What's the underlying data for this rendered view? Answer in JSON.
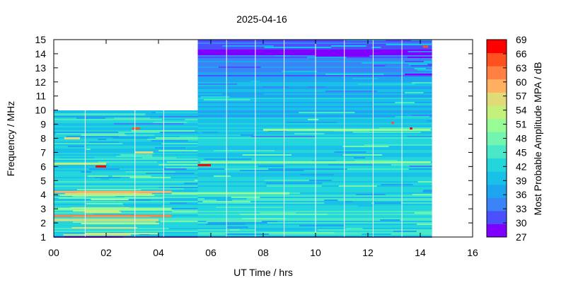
{
  "chart_data": {
    "type": "heatmap",
    "title": "2025-04-16",
    "xlabel": "UT Time / hrs",
    "ylabel": "Frequency / MHz",
    "colorbar_label": "Most Probable Amplitude MPA / dB",
    "xlim": [
      0,
      16
    ],
    "ylim": [
      1,
      15
    ],
    "x_ticks": [
      "00",
      "02",
      "04",
      "06",
      "08",
      "10",
      "12",
      "14",
      "16"
    ],
    "y_ticks": [
      "1",
      "2",
      "3",
      "4",
      "5",
      "6",
      "7",
      "8",
      "9",
      "10",
      "11",
      "12",
      "13",
      "14",
      "15"
    ],
    "colorbar_ticks": [
      "27",
      "30",
      "33",
      "36",
      "39",
      "42",
      "45",
      "48",
      "51",
      "54",
      "57",
      "60",
      "63",
      "66",
      "69"
    ],
    "colorbar_range": [
      27,
      69
    ],
    "colormap": [
      "#7f00ff",
      "#4b50ff",
      "#3b84f7",
      "#1ea5f0",
      "#19c0e8",
      "#22d6dc",
      "#48e8c8",
      "#72f5ae",
      "#98fc96",
      "#c4f07c",
      "#e0da78",
      "#ffb060",
      "#ff8040",
      "#ff5020",
      "#ff0000"
    ],
    "data_end_hours": 14.45,
    "coverage": [
      {
        "x_start": 0.0,
        "x_end": 5.5,
        "f_min": 1,
        "f_max": 10
      },
      {
        "x_start": 5.5,
        "x_end": 14.45,
        "f_min": 1,
        "f_max": 15
      }
    ],
    "gap_lines_hours": [
      1.2,
      3.1,
      4.2,
      6.6,
      7.7,
      8.8,
      10.0,
      11.1,
      12.2,
      13.3
    ],
    "bands": [
      {
        "f_min": 1.0,
        "f_max": 1.15,
        "mpa": 33
      },
      {
        "f_min": 1.15,
        "f_max": 2.0,
        "mpa": 42
      },
      {
        "f_min": 2.0,
        "f_max": 4.5,
        "mpa": 42
      },
      {
        "f_min": 4.5,
        "f_max": 9.5,
        "mpa": 41
      },
      {
        "f_min": 9.5,
        "f_max": 12.0,
        "mpa": 39
      },
      {
        "f_min": 12.0,
        "f_max": 13.5,
        "mpa": 35
      },
      {
        "f_min": 13.5,
        "f_max": 14.4,
        "mpa": 31
      },
      {
        "f_min": 14.4,
        "f_max": 15.0,
        "mpa": 33
      }
    ],
    "hot_lines": [
      {
        "f": 2.5,
        "x_start": 0.0,
        "x_end": 4.5,
        "mpa": 62
      },
      {
        "f": 2.2,
        "x_start": 0.0,
        "x_end": 4.0,
        "mpa": 55
      },
      {
        "f": 3.0,
        "x_start": 0.0,
        "x_end": 4.5,
        "mpa": 52
      },
      {
        "f": 4.2,
        "x_start": 0.0,
        "x_end": 4.5,
        "mpa": 58
      },
      {
        "f": 4.1,
        "x_start": 4.5,
        "x_end": 9.0,
        "mpa": 50
      },
      {
        "f": 6.2,
        "x_start": 0.0,
        "x_end": 2.0,
        "mpa": 53
      },
      {
        "f": 6.0,
        "x_start": 1.6,
        "x_end": 2.0,
        "mpa": 68
      },
      {
        "f": 6.1,
        "x_start": 5.5,
        "x_end": 6.0,
        "mpa": 68
      },
      {
        "f": 6.3,
        "x_start": 5.6,
        "x_end": 14.4,
        "mpa": 51
      },
      {
        "f": 8.6,
        "x_start": 8.0,
        "x_end": 14.4,
        "mpa": 52
      },
      {
        "f": 8.7,
        "x_start": 3.0,
        "x_end": 3.3,
        "mpa": 66
      },
      {
        "f": 9.7,
        "x_start": 0.0,
        "x_end": 3.5,
        "mpa": 45
      },
      {
        "f": 8.0,
        "x_start": 0.4,
        "x_end": 1.0,
        "mpa": 55
      },
      {
        "f": 7.0,
        "x_start": 3.1,
        "x_end": 3.8,
        "mpa": 55
      },
      {
        "f": 14.5,
        "x_start": 14.1,
        "x_end": 14.3,
        "mpa": 66
      },
      {
        "f": 9.1,
        "x_start": 12.9,
        "x_end": 13.0,
        "mpa": 66
      },
      {
        "f": 8.7,
        "x_start": 13.6,
        "x_end": 13.7,
        "mpa": 68
      }
    ]
  }
}
